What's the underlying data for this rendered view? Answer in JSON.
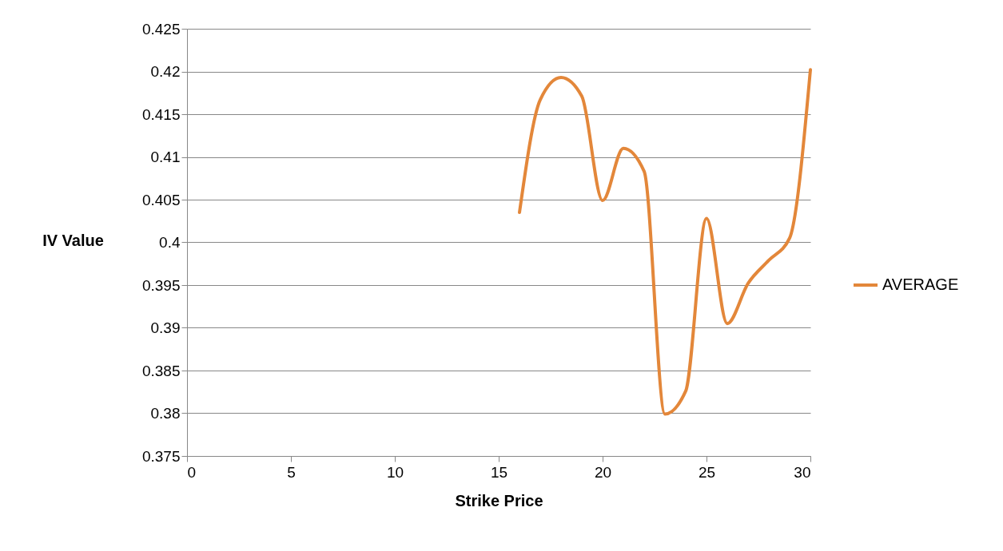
{
  "chart_data": {
    "type": "line",
    "xlabel": "Strike Price",
    "ylabel": "IV Value",
    "x": [
      16,
      17,
      18,
      19,
      20,
      21,
      22,
      23,
      24,
      25,
      26,
      27,
      28,
      29,
      30
    ],
    "series": [
      {
        "name": "AVERAGE",
        "color": "#e3873a",
        "values": [
          0.4035,
          0.4167,
          0.4193,
          0.4171,
          0.4049,
          0.411,
          0.4083,
          0.3799,
          0.3826,
          0.4028,
          0.3905,
          0.3952,
          0.3979,
          0.4005,
          0.4202
        ]
      }
    ],
    "xlim": [
      0,
      30
    ],
    "xticks": [
      0,
      5,
      10,
      15,
      20,
      25,
      30
    ],
    "ylim": [
      0.375,
      0.425
    ],
    "yticks": [
      0.375,
      0.38,
      0.385,
      0.39,
      0.395,
      0.4,
      0.405,
      0.41,
      0.415,
      0.42,
      0.425
    ],
    "grid": "y",
    "legend": "right"
  }
}
